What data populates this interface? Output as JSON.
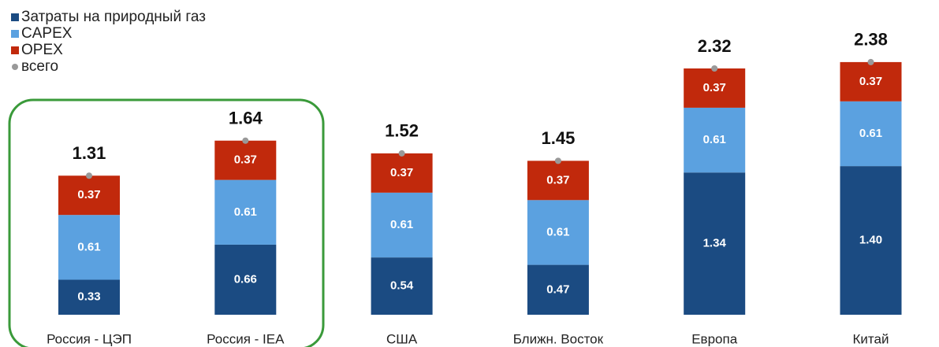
{
  "chart_data": {
    "type": "stacked_bar",
    "categories": [
      "Россия - ЦЭП",
      "Россия - IEA",
      "США",
      "Ближн. Восток",
      "Европа",
      "Китай"
    ],
    "series": [
      {
        "name": "Затраты на природный газ",
        "color": "#1b4b82",
        "values": [
          0.33,
          0.66,
          0.54,
          0.47,
          1.34,
          1.4
        ],
        "value_labels": [
          "0.33",
          "0.66",
          "0.54",
          "0.47",
          "1.34",
          "1.40"
        ]
      },
      {
        "name": "CAPEX",
        "color": "#5ba1e0",
        "values": [
          0.61,
          0.61,
          0.61,
          0.61,
          0.61,
          0.61
        ]
      },
      {
        "name": "OPEX",
        "color": "#c1290c",
        "values": [
          0.37,
          0.37,
          0.37,
          0.37,
          0.37,
          0.37
        ]
      }
    ],
    "total": {
      "name": "всего",
      "color": "#999999",
      "values": [
        1.31,
        1.64,
        1.52,
        1.45,
        2.32,
        2.38
      ]
    },
    "ylim": [
      0,
      2.95
    ]
  }
}
